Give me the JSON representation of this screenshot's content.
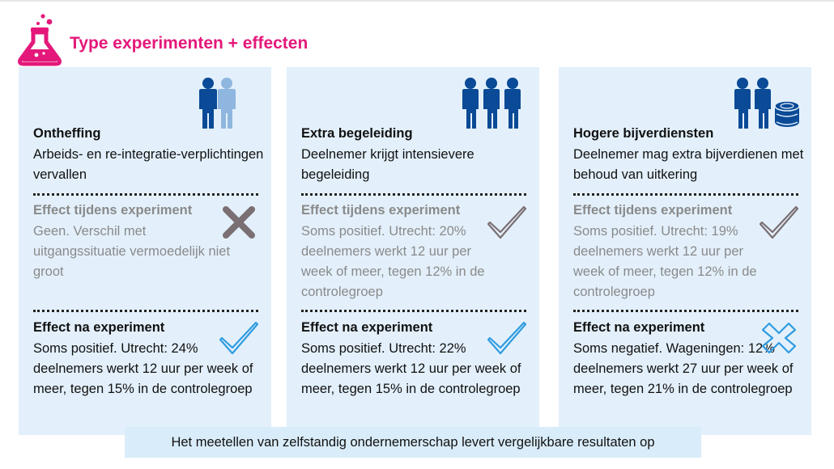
{
  "page": {
    "title": "Type experimenten + effecten",
    "footer_note": "Het meetellen van zelfstandig ondernemerschap levert vergelijkbare resultaten op"
  },
  "colors": {
    "accent": "#e4187a",
    "panel": "#e3f0fb",
    "footer_bg": "#d9ecf9",
    "figure_dark": "#0a4a96",
    "figure_light": "#8fb6de",
    "check_blue": "#2f9be0",
    "check_grey": "#7a6f72",
    "cross_grey": "#7a6f72",
    "cross_blue": "#2f9be0"
  },
  "columns": [
    {
      "icon": "two-people-icon",
      "heading": "Ontheffing",
      "description": "Arbeids- en re-integratie-verplichtingen vervallen",
      "during_heading": "Effect tijdens experiment",
      "during_text": "Geen. Verschil met uitgangssituatie vermoedelijk niet groot",
      "during_mark": "cross",
      "after_heading": "Effect na experiment",
      "after_text": "Soms positief. Utrecht: 24% deelnemers werkt 12 uur per week of meer, tegen 15% in de controlegroep",
      "after_mark": "check"
    },
    {
      "icon": "three-people-icon",
      "heading": "Extra begeleiding",
      "description": "Deelnemer krijgt intensievere begeleiding",
      "during_heading": "Effect tijdens experiment",
      "during_text": "Soms positief. Utrecht: 20% deelnemers werkt 12 uur per week of meer, tegen 12% in de controlegroep",
      "during_mark": "check",
      "after_heading": "Effect na experiment",
      "after_text": "Soms positief. Utrecht: 22% deelnemers werkt 12 uur per week of meer, tegen 15% in de controlegroep",
      "after_mark": "check"
    },
    {
      "icon": "people-with-coins-icon",
      "heading": "Hogere bijverdiensten",
      "description": "Deelnemer mag extra bijverdienen met behoud van uitkering",
      "during_heading": "Effect tijdens experiment",
      "during_text": "Soms positief. Utrecht: 19% deelnemers werkt 12 uur per week of meer, tegen 12% in de controlegroep",
      "during_mark": "check",
      "after_heading": "Effect na experiment",
      "after_text": "Soms negatief. Wageningen: 12% deelnemers werkt 27 uur per week of meer, tegen 21% in de controlegroep",
      "after_mark": "cross"
    }
  ]
}
